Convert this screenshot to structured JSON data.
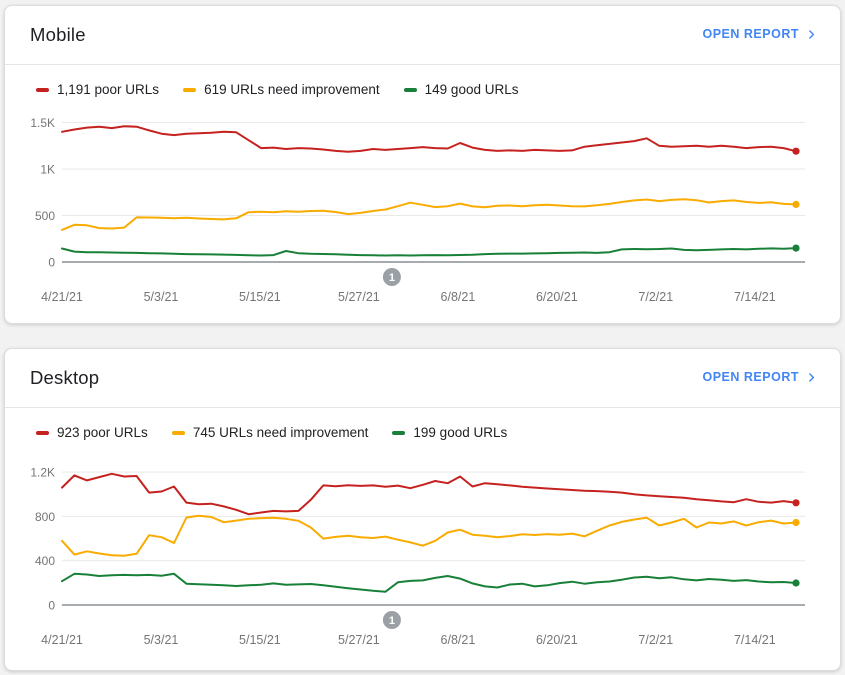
{
  "colors": {
    "poor": "#c5221f",
    "needs_improvement": "#f9ab00",
    "good": "#188038",
    "link_blue": "#4285f4",
    "axis_text": "#757575",
    "gridline": "#e9e9e9",
    "axis_line": "#8a8f94",
    "annotation_gray": "#9aa0a6"
  },
  "cards": [
    {
      "title": "Mobile",
      "open_report_label": "OPEN REPORT",
      "legend": [
        {
          "label": "1,191 poor URLs",
          "color": "#c5221f"
        },
        {
          "label": "619 URLs need improvement",
          "color": "#f9ab00"
        },
        {
          "label": "149 good URLs",
          "color": "#188038"
        }
      ]
    },
    {
      "title": "Desktop",
      "open_report_label": "OPEN REPORT",
      "legend": [
        {
          "label": "923 poor URLs",
          "color": "#c5221f"
        },
        {
          "label": "745 URLs need improvement",
          "color": "#f9ab00"
        },
        {
          "label": "199 good URLs",
          "color": "#188038"
        }
      ]
    }
  ],
  "chart_data": [
    {
      "type": "line",
      "title": "Mobile Core Web Vitals URL counts over time",
      "x_tick_labels": [
        "4/21/21",
        "5/3/21",
        "5/15/21",
        "5/27/21",
        "6/8/21",
        "6/20/21",
        "7/2/21",
        "7/14/21"
      ],
      "y_tick_labels": [
        "0",
        "500",
        "1K",
        "1.5K"
      ],
      "y_tick_values": [
        0,
        500,
        1000,
        1500
      ],
      "ylim": [
        0,
        1600
      ],
      "grid": true,
      "legend_position": "top",
      "annotation": {
        "label": "1"
      },
      "series": [
        {
          "name": "poor URLs",
          "current_value": 1191,
          "color": "#c5221f",
          "values": [
            1400,
            1425,
            1445,
            1455,
            1440,
            1460,
            1455,
            1415,
            1380,
            1365,
            1380,
            1385,
            1390,
            1400,
            1395,
            1310,
            1225,
            1230,
            1215,
            1225,
            1220,
            1210,
            1195,
            1185,
            1195,
            1215,
            1205,
            1215,
            1225,
            1235,
            1225,
            1220,
            1280,
            1230,
            1205,
            1195,
            1200,
            1195,
            1205,
            1200,
            1195,
            1200,
            1240,
            1255,
            1270,
            1285,
            1300,
            1330,
            1250,
            1240,
            1245,
            1250,
            1240,
            1250,
            1240,
            1225,
            1235,
            1240,
            1225,
            1191
          ]
        },
        {
          "name": "URLs need improvement",
          "current_value": 619,
          "color": "#f9ab00",
          "values": [
            345,
            400,
            395,
            365,
            360,
            370,
            480,
            478,
            475,
            470,
            475,
            468,
            462,
            458,
            470,
            535,
            540,
            535,
            545,
            540,
            548,
            550,
            538,
            515,
            528,
            548,
            565,
            600,
            638,
            615,
            590,
            600,
            628,
            598,
            588,
            605,
            608,
            600,
            610,
            615,
            608,
            600,
            598,
            610,
            625,
            645,
            662,
            672,
            655,
            668,
            675,
            665,
            640,
            655,
            662,
            645,
            636,
            642,
            625,
            619
          ]
        },
        {
          "name": "good URLs",
          "current_value": 149,
          "color": "#188038",
          "values": [
            145,
            112,
            105,
            105,
            102,
            100,
            98,
            95,
            92,
            88,
            85,
            84,
            82,
            80,
            76,
            72,
            70,
            74,
            118,
            95,
            88,
            86,
            84,
            78,
            74,
            72,
            70,
            72,
            70,
            72,
            74,
            72,
            75,
            78,
            85,
            88,
            90,
            90,
            92,
            95,
            98,
            100,
            102,
            98,
            105,
            135,
            140,
            138,
            140,
            145,
            130,
            126,
            130,
            136,
            140,
            136,
            142,
            146,
            143,
            149
          ]
        }
      ]
    },
    {
      "type": "line",
      "title": "Desktop Core Web Vitals URL counts over time",
      "x_tick_labels": [
        "4/21/21",
        "5/3/21",
        "5/15/21",
        "5/27/21",
        "6/8/21",
        "6/20/21",
        "7/2/21",
        "7/14/21"
      ],
      "y_tick_labels": [
        "0",
        "400",
        "800",
        "1.2K"
      ],
      "y_tick_values": [
        0,
        400,
        800,
        1200
      ],
      "ylim": [
        0,
        1350
      ],
      "grid": true,
      "legend_position": "top",
      "annotation": {
        "label": "1"
      },
      "series": [
        {
          "name": "poor URLs",
          "current_value": 923,
          "color": "#c5221f",
          "values": [
            1060,
            1170,
            1125,
            1155,
            1185,
            1160,
            1165,
            1015,
            1025,
            1070,
            925,
            910,
            915,
            890,
            860,
            820,
            835,
            850,
            845,
            850,
            950,
            1080,
            1072,
            1082,
            1075,
            1080,
            1068,
            1078,
            1055,
            1085,
            1120,
            1100,
            1160,
            1070,
            1100,
            1090,
            1080,
            1068,
            1060,
            1052,
            1045,
            1038,
            1032,
            1028,
            1022,
            1015,
            1000,
            990,
            982,
            975,
            968,
            955,
            945,
            935,
            928,
            955,
            932,
            925,
            938,
            923
          ]
        },
        {
          "name": "URLs need improvement",
          "current_value": 745,
          "color": "#f9ab00",
          "values": [
            580,
            455,
            485,
            465,
            450,
            445,
            462,
            630,
            612,
            560,
            790,
            805,
            795,
            748,
            762,
            778,
            785,
            788,
            778,
            760,
            700,
            600,
            615,
            625,
            612,
            605,
            618,
            590,
            565,
            535,
            580,
            655,
            680,
            635,
            625,
            612,
            622,
            638,
            632,
            640,
            634,
            645,
            620,
            670,
            718,
            750,
            772,
            788,
            718,
            745,
            778,
            700,
            745,
            736,
            755,
            718,
            748,
            762,
            736,
            745
          ]
        },
        {
          "name": "good URLs",
          "current_value": 199,
          "color": "#188038",
          "values": [
            215,
            282,
            275,
            262,
            268,
            272,
            268,
            272,
            265,
            282,
            192,
            188,
            182,
            178,
            172,
            178,
            182,
            195,
            182,
            186,
            190,
            178,
            165,
            152,
            140,
            128,
            120,
            205,
            218,
            222,
            245,
            262,
            238,
            195,
            168,
            158,
            185,
            192,
            168,
            178,
            198,
            210,
            192,
            205,
            212,
            228,
            248,
            255,
            242,
            250,
            232,
            222,
            235,
            228,
            218,
            225,
            212,
            205,
            208,
            199
          ]
        }
      ]
    }
  ]
}
